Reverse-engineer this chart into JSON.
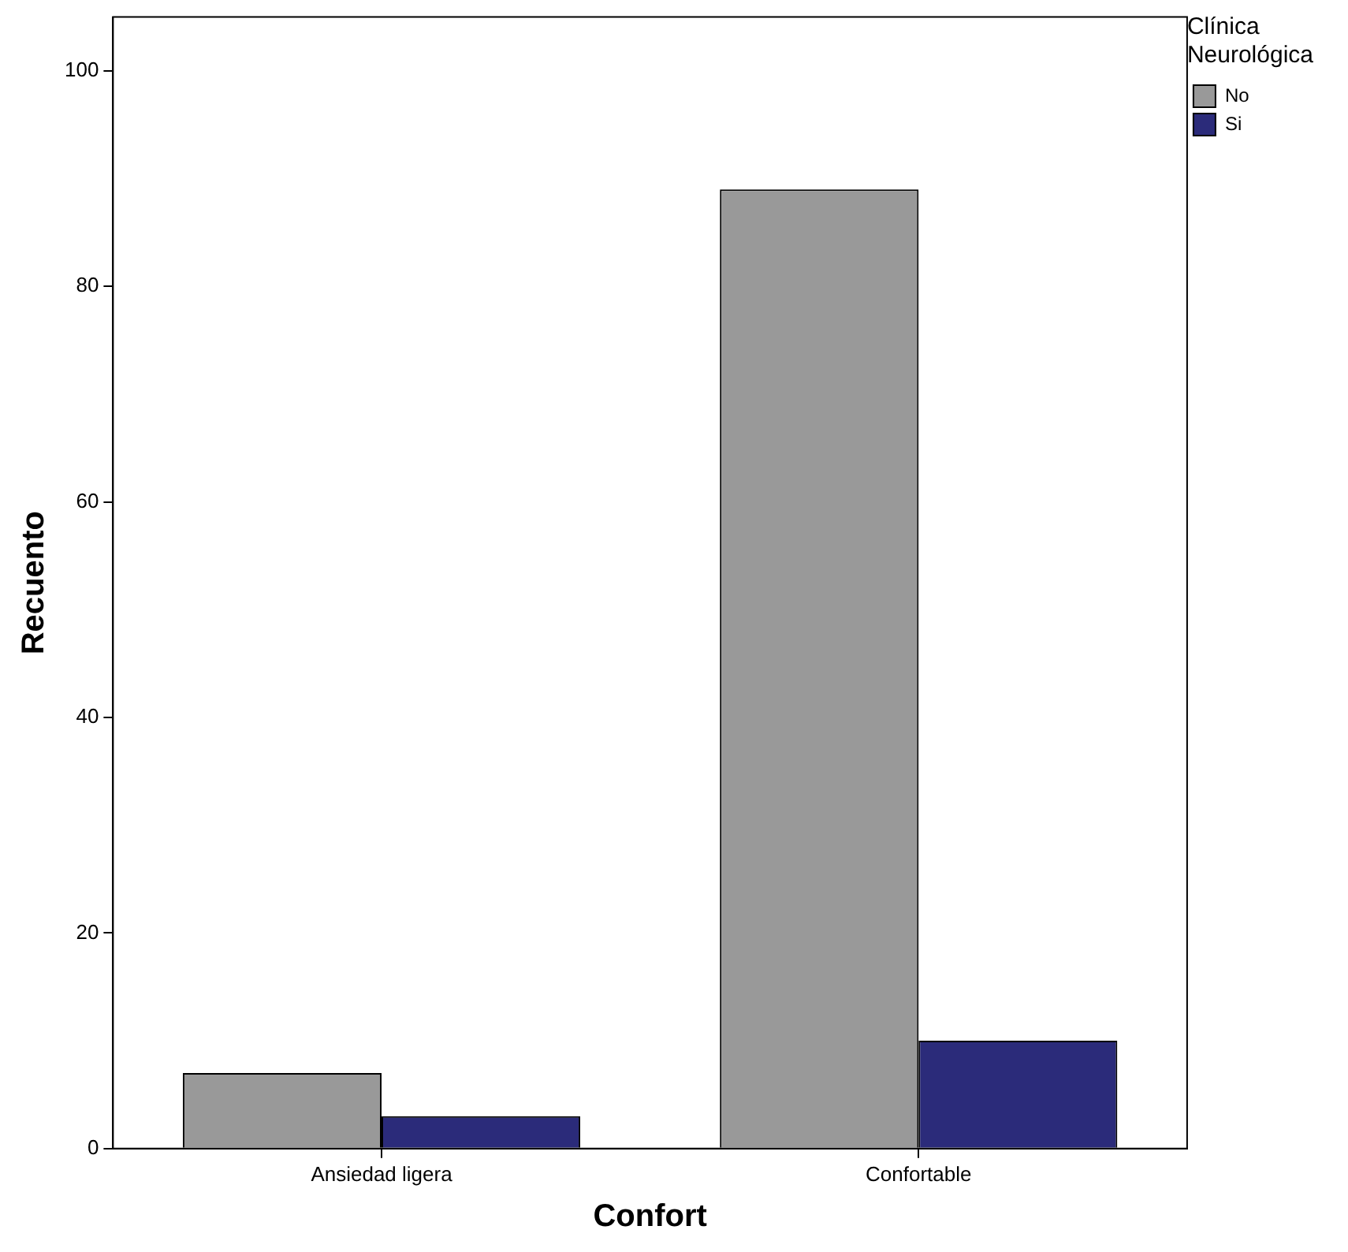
{
  "chart_data": {
    "type": "bar",
    "xlabel": "Confort",
    "ylabel": "Recuento",
    "legend_title": "Clínica Neurológica",
    "categories": [
      "Ansiedad ligera",
      "Confortable"
    ],
    "series": [
      {
        "name": "No",
        "color": "#999999",
        "values": [
          7,
          89
        ]
      },
      {
        "name": "Si",
        "color": "#2b2b7a",
        "values": [
          3,
          10
        ]
      }
    ],
    "ylim": [
      0,
      105
    ],
    "yticks": [
      0,
      20,
      40,
      60,
      80,
      100
    ],
    "grid": false,
    "legend": "top right"
  }
}
